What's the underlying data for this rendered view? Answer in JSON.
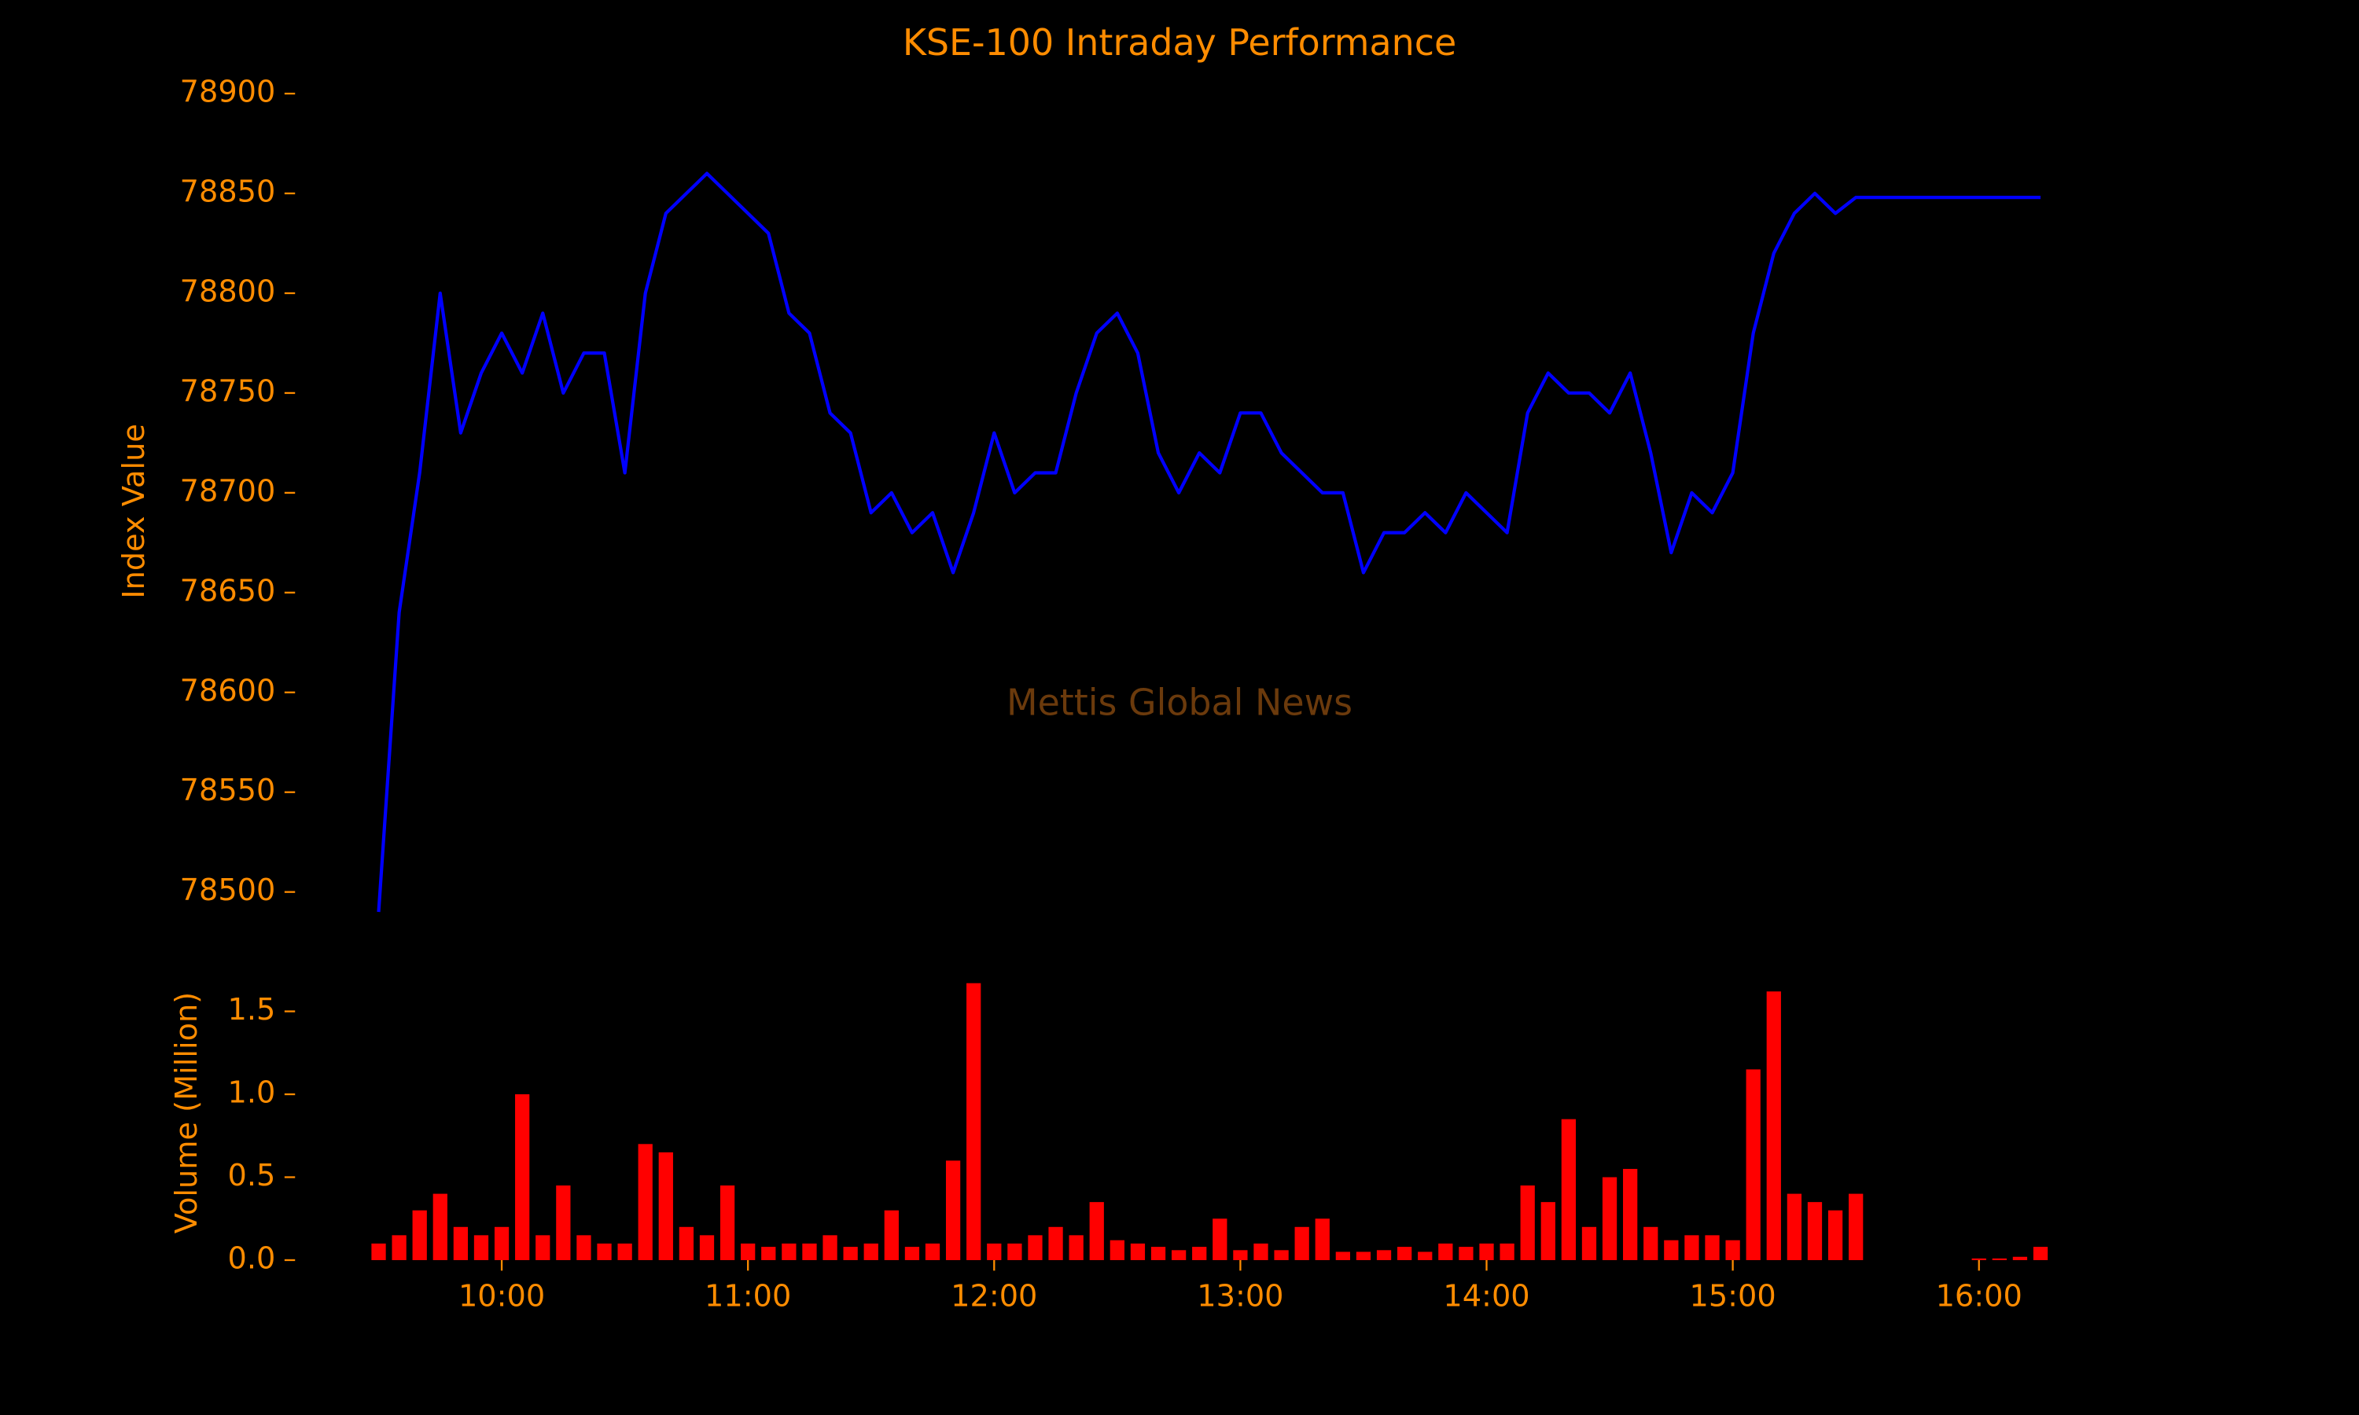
{
  "chart_data": [
    {
      "type": "line",
      "title": "KSE-100 Intraday Performance",
      "annotation": "Mettis Global News",
      "ylabel": "Index Value",
      "color": "#0000ff",
      "x": [
        "09:30",
        "09:35",
        "09:40",
        "09:45",
        "09:50",
        "09:55",
        "10:00",
        "10:05",
        "10:10",
        "10:15",
        "10:20",
        "10:25",
        "10:30",
        "10:35",
        "10:40",
        "10:45",
        "10:50",
        "10:55",
        "11:00",
        "11:05",
        "11:10",
        "11:15",
        "11:20",
        "11:25",
        "11:30",
        "11:35",
        "11:40",
        "11:45",
        "11:50",
        "11:55",
        "12:00",
        "12:05",
        "12:10",
        "12:15",
        "12:20",
        "12:25",
        "12:30",
        "12:35",
        "12:40",
        "12:45",
        "12:50",
        "12:55",
        "13:00",
        "13:05",
        "13:10",
        "13:15",
        "13:20",
        "13:25",
        "13:30",
        "13:35",
        "13:40",
        "13:45",
        "13:50",
        "13:55",
        "14:00",
        "14:05",
        "14:10",
        "14:15",
        "14:20",
        "14:25",
        "14:30",
        "14:35",
        "14:40",
        "14:45",
        "14:50",
        "14:55",
        "15:00",
        "15:05",
        "15:10",
        "15:15",
        "15:20",
        "15:25",
        "15:30",
        "15:35",
        "15:40",
        "15:45",
        "15:50",
        "15:55",
        "16:00",
        "16:05",
        "16:10",
        "16:15"
      ],
      "values": [
        78490,
        78640,
        78710,
        78800,
        78730,
        78760,
        78780,
        78760,
        78790,
        78750,
        78770,
        78770,
        78710,
        78800,
        78840,
        78850,
        78860,
        78850,
        78840,
        78830,
        78790,
        78780,
        78740,
        78730,
        78690,
        78700,
        78680,
        78690,
        78660,
        78690,
        78730,
        78700,
        78710,
        78710,
        78750,
        78780,
        78790,
        78770,
        78720,
        78700,
        78720,
        78710,
        78740,
        78740,
        78720,
        78710,
        78700,
        78700,
        78660,
        78680,
        78680,
        78690,
        78680,
        78700,
        78690,
        78680,
        78740,
        78760,
        78750,
        78750,
        78740,
        78760,
        78720,
        78670,
        78700,
        78690,
        78710,
        78780,
        78820,
        78840,
        78850,
        78840,
        78848,
        78848,
        78848,
        78848,
        78848,
        78848,
        78848,
        78848,
        78848,
        78848
      ],
      "xlim": [
        "09:10",
        "16:35"
      ],
      "ylim": [
        78470,
        78913
      ],
      "yticks": [
        78500,
        78550,
        78600,
        78650,
        78700,
        78750,
        78800,
        78850,
        78900
      ]
    },
    {
      "type": "bar",
      "ylabel": "Volume (Million)",
      "color": "#ff0000",
      "x": [
        "09:30",
        "09:35",
        "09:40",
        "09:45",
        "09:50",
        "09:55",
        "10:00",
        "10:05",
        "10:10",
        "10:15",
        "10:20",
        "10:25",
        "10:30",
        "10:35",
        "10:40",
        "10:45",
        "10:50",
        "10:55",
        "11:00",
        "11:05",
        "11:10",
        "11:15",
        "11:20",
        "11:25",
        "11:30",
        "11:35",
        "11:40",
        "11:45",
        "11:50",
        "11:55",
        "12:00",
        "12:05",
        "12:10",
        "12:15",
        "12:20",
        "12:25",
        "12:30",
        "12:35",
        "12:40",
        "12:45",
        "12:50",
        "12:55",
        "13:00",
        "13:05",
        "13:10",
        "13:15",
        "13:20",
        "13:25",
        "13:30",
        "13:35",
        "13:40",
        "13:45",
        "13:50",
        "13:55",
        "14:00",
        "14:05",
        "14:10",
        "14:15",
        "14:20",
        "14:25",
        "14:30",
        "14:35",
        "14:40",
        "14:45",
        "14:50",
        "14:55",
        "15:00",
        "15:05",
        "15:10",
        "15:15",
        "15:20",
        "15:25",
        "15:30",
        "15:35",
        "15:40",
        "15:45",
        "15:50",
        "15:55",
        "16:00",
        "16:05",
        "16:10",
        "16:15"
      ],
      "values": [
        0.1,
        0.15,
        0.3,
        0.4,
        0.2,
        0.15,
        0.2,
        1.0,
        0.15,
        0.45,
        0.15,
        0.1,
        0.1,
        0.7,
        0.65,
        0.2,
        0.15,
        0.45,
        0.1,
        0.08,
        0.1,
        0.1,
        0.15,
        0.08,
        0.1,
        0.3,
        0.08,
        0.1,
        0.6,
        1.67,
        0.1,
        0.1,
        0.15,
        0.2,
        0.15,
        0.35,
        0.12,
        0.1,
        0.08,
        0.06,
        0.08,
        0.25,
        0.06,
        0.1,
        0.06,
        0.2,
        0.25,
        0.05,
        0.05,
        0.06,
        0.08,
        0.05,
        0.1,
        0.08,
        0.1,
        0.1,
        0.45,
        0.35,
        0.85,
        0.2,
        0.5,
        0.55,
        0.2,
        0.12,
        0.15,
        0.15,
        0.12,
        1.15,
        1.62,
        0.4,
        0.35,
        0.3,
        0.4,
        null,
        null,
        null,
        null,
        null,
        0.01,
        0.01,
        0.02,
        0.08
      ],
      "xlim": [
        "09:10",
        "16:35"
      ],
      "ylim": [
        0,
        1.75
      ],
      "yticks": [
        {
          "value": 0,
          "label": "0.0"
        },
        0.5,
        {
          "value": 1,
          "label": "1.0"
        },
        1.5
      ],
      "xticks": [
        "10:00",
        "11:00",
        "12:00",
        "13:00",
        "14:00",
        "15:00",
        "16:00"
      ]
    }
  ]
}
